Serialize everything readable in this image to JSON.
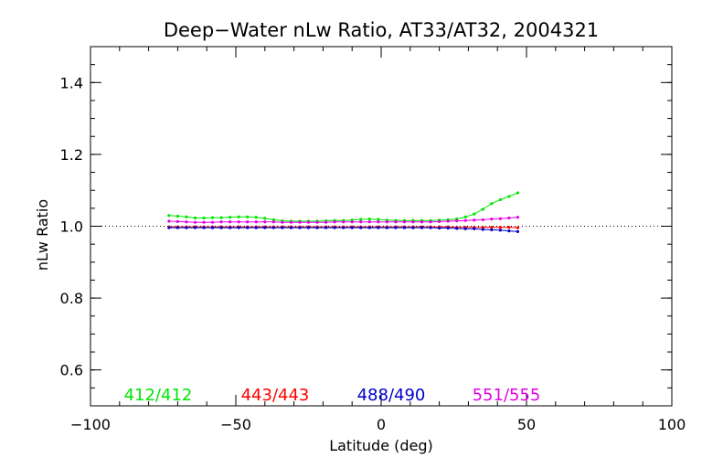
{
  "chart_data": {
    "type": "line",
    "title": "Deep−Water nLw Ratio, AT33/AT32, 2004321",
    "xlabel": "Latitude (deg)",
    "ylabel": "nLw Ratio",
    "xlim": [
      -100,
      100
    ],
    "ylim": [
      0.5,
      1.5
    ],
    "xticks": [
      -100,
      -50,
      0,
      50,
      100
    ],
    "xtick_labels": [
      "−100",
      "−50",
      "0",
      "50",
      "100"
    ],
    "yticks": [
      0.6,
      0.8,
      1.0,
      1.2,
      1.4
    ],
    "ytick_labels": [
      "0.6",
      "0.8",
      "1.0",
      "1.2",
      "1.4"
    ],
    "reference_line": 1.0,
    "grid": false,
    "legend": "bottom, inside plot",
    "x": [
      -73,
      -70,
      -67,
      -64,
      -61,
      -58,
      -55,
      -52,
      -49,
      -46,
      -43,
      -40,
      -37,
      -34,
      -31,
      -28,
      -25,
      -22,
      -19,
      -16,
      -13,
      -10,
      -7,
      -4,
      -1,
      2,
      5,
      8,
      11,
      14,
      17,
      20,
      23,
      26,
      29,
      32,
      35,
      38,
      41,
      44,
      47
    ],
    "series": [
      {
        "name": "412/412",
        "color": "#00e600",
        "values": [
          1.03,
          1.028,
          1.026,
          1.023,
          1.023,
          1.024,
          1.024,
          1.025,
          1.026,
          1.026,
          1.025,
          1.022,
          1.018,
          1.015,
          1.014,
          1.014,
          1.014,
          1.014,
          1.015,
          1.016,
          1.016,
          1.017,
          1.019,
          1.02,
          1.019,
          1.017,
          1.016,
          1.016,
          1.016,
          1.016,
          1.016,
          1.017,
          1.018,
          1.02,
          1.026,
          1.034,
          1.047,
          1.063,
          1.074,
          1.083,
          1.093
        ]
      },
      {
        "name": "443/443",
        "color": "#ff0000",
        "values": [
          0.998,
          0.998,
          0.998,
          0.998,
          0.998,
          0.998,
          0.998,
          0.998,
          0.998,
          0.998,
          0.998,
          0.998,
          0.998,
          0.998,
          0.998,
          0.998,
          0.998,
          0.998,
          0.998,
          0.998,
          0.998,
          0.998,
          0.998,
          0.998,
          0.998,
          0.998,
          0.998,
          0.998,
          0.998,
          0.998,
          0.998,
          0.998,
          0.998,
          0.997,
          0.997,
          0.997,
          0.997,
          0.997,
          0.997,
          0.997,
          0.996
        ]
      },
      {
        "name": "488/490",
        "color": "#0000cc",
        "values": [
          0.996,
          0.996,
          0.996,
          0.996,
          0.996,
          0.996,
          0.996,
          0.996,
          0.996,
          0.996,
          0.996,
          0.996,
          0.996,
          0.996,
          0.996,
          0.996,
          0.996,
          0.996,
          0.996,
          0.996,
          0.996,
          0.996,
          0.996,
          0.996,
          0.996,
          0.996,
          0.996,
          0.996,
          0.996,
          0.996,
          0.996,
          0.995,
          0.995,
          0.994,
          0.993,
          0.993,
          0.991,
          0.99,
          0.989,
          0.987,
          0.985
        ]
      },
      {
        "name": "551/555",
        "color": "#e600e6",
        "values": [
          1.014,
          1.013,
          1.012,
          1.011,
          1.011,
          1.011,
          1.012,
          1.012,
          1.012,
          1.012,
          1.012,
          1.012,
          1.012,
          1.011,
          1.011,
          1.011,
          1.011,
          1.011,
          1.011,
          1.012,
          1.012,
          1.012,
          1.012,
          1.012,
          1.012,
          1.012,
          1.012,
          1.012,
          1.012,
          1.012,
          1.012,
          1.013,
          1.014,
          1.015,
          1.016,
          1.017,
          1.018,
          1.02,
          1.021,
          1.023,
          1.025
        ]
      }
    ]
  }
}
